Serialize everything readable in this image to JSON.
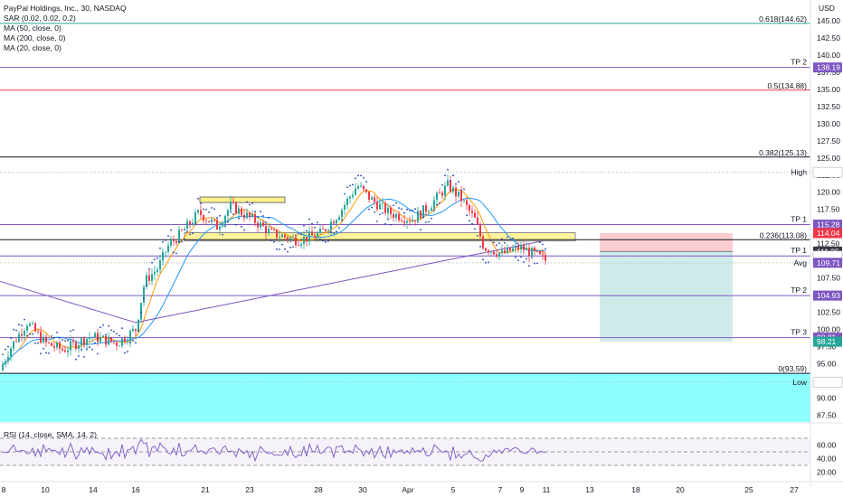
{
  "chart_data": {
    "type": "candlestick",
    "title": "PayPal Holdings, Inc., 30, NASDAQ",
    "currency": "USD",
    "indicators": [
      "SAR (0.02, 0.02, 0.2)",
      "MA (50, close, 0)",
      "MA (200, close, 0)",
      "MA (20, close, 0)"
    ],
    "price_axis": {
      "ticks": [
        "145.00",
        "142.50",
        "140.00",
        "137.50",
        "135.00",
        "132.50",
        "130.00",
        "127.50",
        "125.00",
        "122.50",
        "120.00",
        "117.50",
        "115.00",
        "112.50",
        "110.00",
        "107.50",
        "105.00",
        "102.50",
        "100.00",
        "97.50",
        "95.00",
        "92.50",
        "90.00",
        "87.50"
      ],
      "ylim": [
        86.5,
        147.5
      ]
    },
    "time_axis": {
      "ticks": [
        "8",
        "10",
        "14",
        "16",
        "21",
        "23",
        "28",
        "30",
        "Apr",
        "5",
        "7",
        "9",
        "11",
        "13",
        "18",
        "20",
        "25",
        "27"
      ]
    },
    "fib_levels": [
      {
        "label": "0.618(144.62)",
        "value": 144.62,
        "color": "#26a69a"
      },
      {
        "label": "0.5(134.88)",
        "value": 134.88,
        "color": "#f23645"
      },
      {
        "label": "0.382(125.13)",
        "value": 125.13,
        "color": "#131722"
      },
      {
        "label": "0.236(113.08)",
        "value": 113.08,
        "color": "#131722"
      },
      {
        "label": "0(93.59)",
        "value": 93.59,
        "color": "#131722"
      }
    ],
    "target_levels": [
      {
        "label": "TP 2",
        "value": 138.19
      },
      {
        "label": "TP 1",
        "value": 115.28
      },
      {
        "label": "TP 1",
        "value": 110.71
      },
      {
        "label": "TP 2",
        "value": 104.93
      },
      {
        "label": "TP 3",
        "value": 98.81
      }
    ],
    "markers": [
      {
        "label": "High",
        "value": 122.91
      },
      {
        "label": "Avg",
        "value": 109.71
      },
      {
        "label": "Low",
        "value": 92.28
      }
    ],
    "price_badges": [
      {
        "text": "138.19",
        "value": 138.19,
        "color": "#7e57c2"
      },
      {
        "text": "122.91",
        "value": 122.91,
        "color": "#ffffff"
      },
      {
        "text": "115.28",
        "value": 115.28,
        "color": "#7e57c2"
      },
      {
        "text": "114.04",
        "value": 114.04,
        "color": "#f23645"
      },
      {
        "text": "111.35",
        "value": 111.35,
        "color": "#363a45"
      },
      {
        "text": "13:19",
        "value": 110.2,
        "color": "#ffffff"
      },
      {
        "text": "110.71",
        "value": 110.71,
        "color": "#ffffff"
      },
      {
        "text": "109.71",
        "value": 109.71,
        "color": "#7e57c2"
      },
      {
        "text": "104.93",
        "value": 104.93,
        "color": "#7e57c2"
      },
      {
        "text": "98.81",
        "value": 98.81,
        "color": "#7e57c2"
      },
      {
        "text": "98.21",
        "value": 98.21,
        "color": "#26a69a"
      },
      {
        "text": "92.28",
        "value": 92.28,
        "color": "#ffffff"
      }
    ],
    "short_position": {
      "entry": 111.35,
      "stop": 114.04,
      "target": 98.21
    },
    "zones": [
      {
        "name": "demand-zone",
        "from": 86.5,
        "to": 93.59,
        "color": "#80ffff"
      }
    ],
    "rsi": {
      "label": "RSI (14, close, SMA, 14, 2)",
      "ticks": [
        "60.00",
        "40.00",
        "20.00"
      ],
      "levels": [
        70,
        50,
        30
      ]
    },
    "colors": {
      "up": "#26a69a",
      "down": "#f23645",
      "ma50": "#2196f3",
      "ma200": "#7e57c2",
      "ma20": "#ff9800",
      "sar": "#1a3fb0"
    }
  },
  "legend": {
    "title": "PayPal Holdings, Inc., 30, NASDAQ",
    "sar": "SAR (0.02, 0.02, 0.2)",
    "ma50": "MA (50, close, 0)",
    "ma200": "MA (200, close, 0)",
    "ma20": "MA (20, close, 0)"
  }
}
